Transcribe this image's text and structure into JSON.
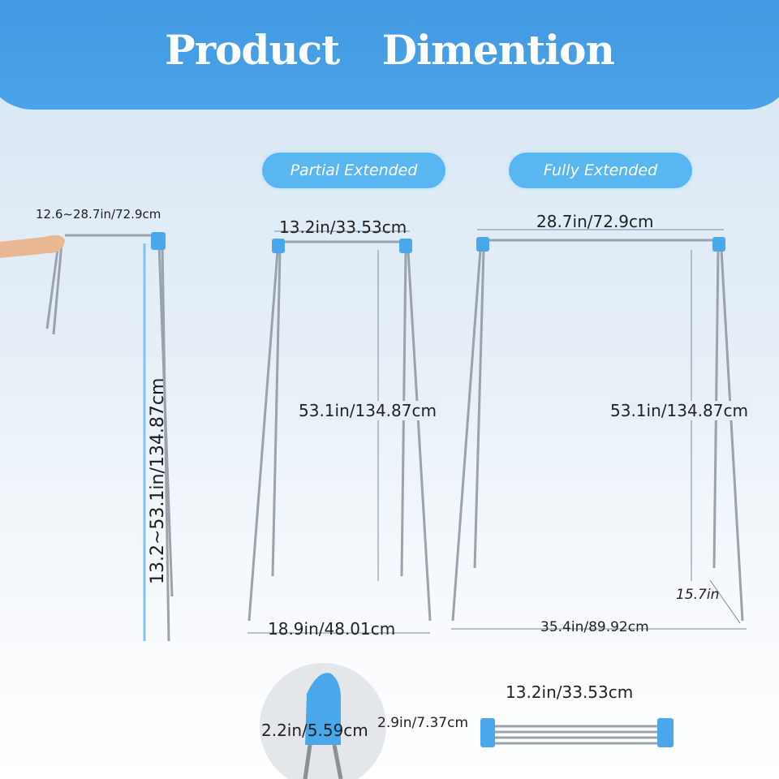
{
  "header": {
    "title": "Product Dimention"
  },
  "badges": {
    "partial": "Partial Extended",
    "fully": "Fully Extended"
  },
  "folded": {
    "width_range": "12.6~28.7in/72.9cm",
    "height_range": "13.2~53.1in/134.87cm"
  },
  "partial": {
    "top_width": "13.2in/33.53cm",
    "height": "53.1in/134.87cm",
    "base_width": "18.9in/48.01cm"
  },
  "fully": {
    "top_width": "28.7in/72.9cm",
    "height": "53.1in/134.87cm",
    "base_width": "35.4in/89.92cm",
    "depth": "15.7in"
  },
  "details": {
    "cap_width": "2.2in/5.59cm",
    "cap_depth": "2.9in/7.37cm",
    "folded_length": "13.2in/33.53cm"
  },
  "colors": {
    "brand_blue": "#4aa3e8",
    "accent_blue": "#5ab6f0",
    "steel": "#9aa3ab"
  }
}
